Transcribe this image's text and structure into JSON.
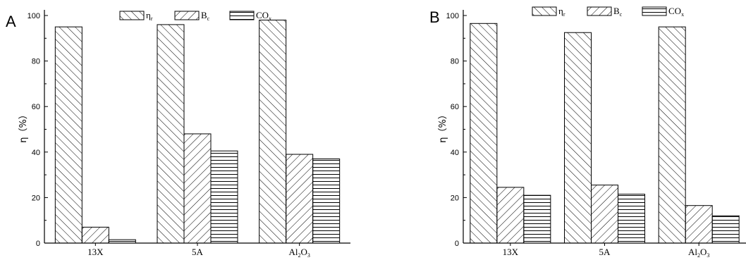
{
  "chart_data": [
    {
      "panel": "A",
      "type": "bar",
      "categories": [
        "13X",
        "5A",
        "Al2O3"
      ],
      "ylabel": "η（%）",
      "ylim": [
        0,
        100
      ],
      "yticks": [
        0,
        20,
        40,
        60,
        80,
        100
      ],
      "legend_position": "top-center",
      "series": [
        {
          "name": "ηr",
          "values": [
            95,
            96,
            98
          ]
        },
        {
          "name": "Bc",
          "values": [
            7,
            48,
            39
          ]
        },
        {
          "name": "COx",
          "values": [
            1.5,
            40.5,
            37
          ]
        }
      ]
    },
    {
      "panel": "B",
      "type": "bar",
      "categories": [
        "13X",
        "5A",
        "Al2O3"
      ],
      "ylabel": "η（%）",
      "ylim": [
        0,
        100
      ],
      "yticks": [
        0,
        20,
        40,
        60,
        80,
        100
      ],
      "legend_position": "top-center",
      "series": [
        {
          "name": "ηr",
          "values": [
            96.5,
            92.5,
            95
          ]
        },
        {
          "name": "Bc",
          "values": [
            24.5,
            25.5,
            16.5
          ]
        },
        {
          "name": "COx",
          "values": [
            21,
            21.5,
            12
          ]
        }
      ]
    }
  ],
  "colors": {
    "bar_stroke": "#000000",
    "fill": "#ffffff"
  }
}
